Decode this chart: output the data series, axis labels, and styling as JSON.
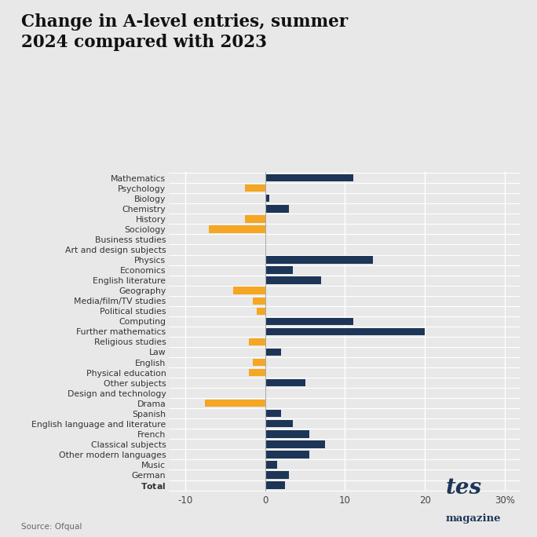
{
  "title_line1": "Change in A-level entries, summer",
  "title_line2": "2024 compared with 2023",
  "categories": [
    "Mathematics",
    "Psychology",
    "Biology",
    "Chemistry",
    "History",
    "Sociology",
    "Business studies",
    "Art and design subjects",
    "Physics",
    "Economics",
    "English literature",
    "Geography",
    "Media/film/TV studies",
    "Political studies",
    "Computing",
    "Further mathematics",
    "Religious studies",
    "Law",
    "English",
    "Physical education",
    "Other subjects",
    "Design and technology",
    "Drama",
    "Spanish",
    "English language and literature",
    "French",
    "Classical subjects",
    "Other modern languages",
    "Music",
    "German",
    "Total"
  ],
  "values": [
    11.0,
    -2.5,
    0.5,
    3.0,
    -2.5,
    -7.0,
    0.0,
    0.15,
    13.5,
    3.5,
    7.0,
    -4.0,
    -1.5,
    -1.0,
    11.0,
    20.0,
    -2.0,
    2.0,
    -1.5,
    -2.0,
    5.0,
    0.15,
    -7.5,
    2.0,
    3.5,
    5.5,
    7.5,
    5.5,
    1.5,
    3.0,
    2.5
  ],
  "dark_navy": "#1d3557",
  "orange": "#f5a623",
  "bg_color": "#e8e8e8",
  "source_text": "Source: Ofqual",
  "xlim": [
    -12,
    32
  ],
  "xticks": [
    -10,
    0,
    10,
    20,
    30
  ],
  "xticklabels": [
    "-10",
    "0",
    "10",
    "20",
    "30%"
  ],
  "bar_height": 0.72
}
